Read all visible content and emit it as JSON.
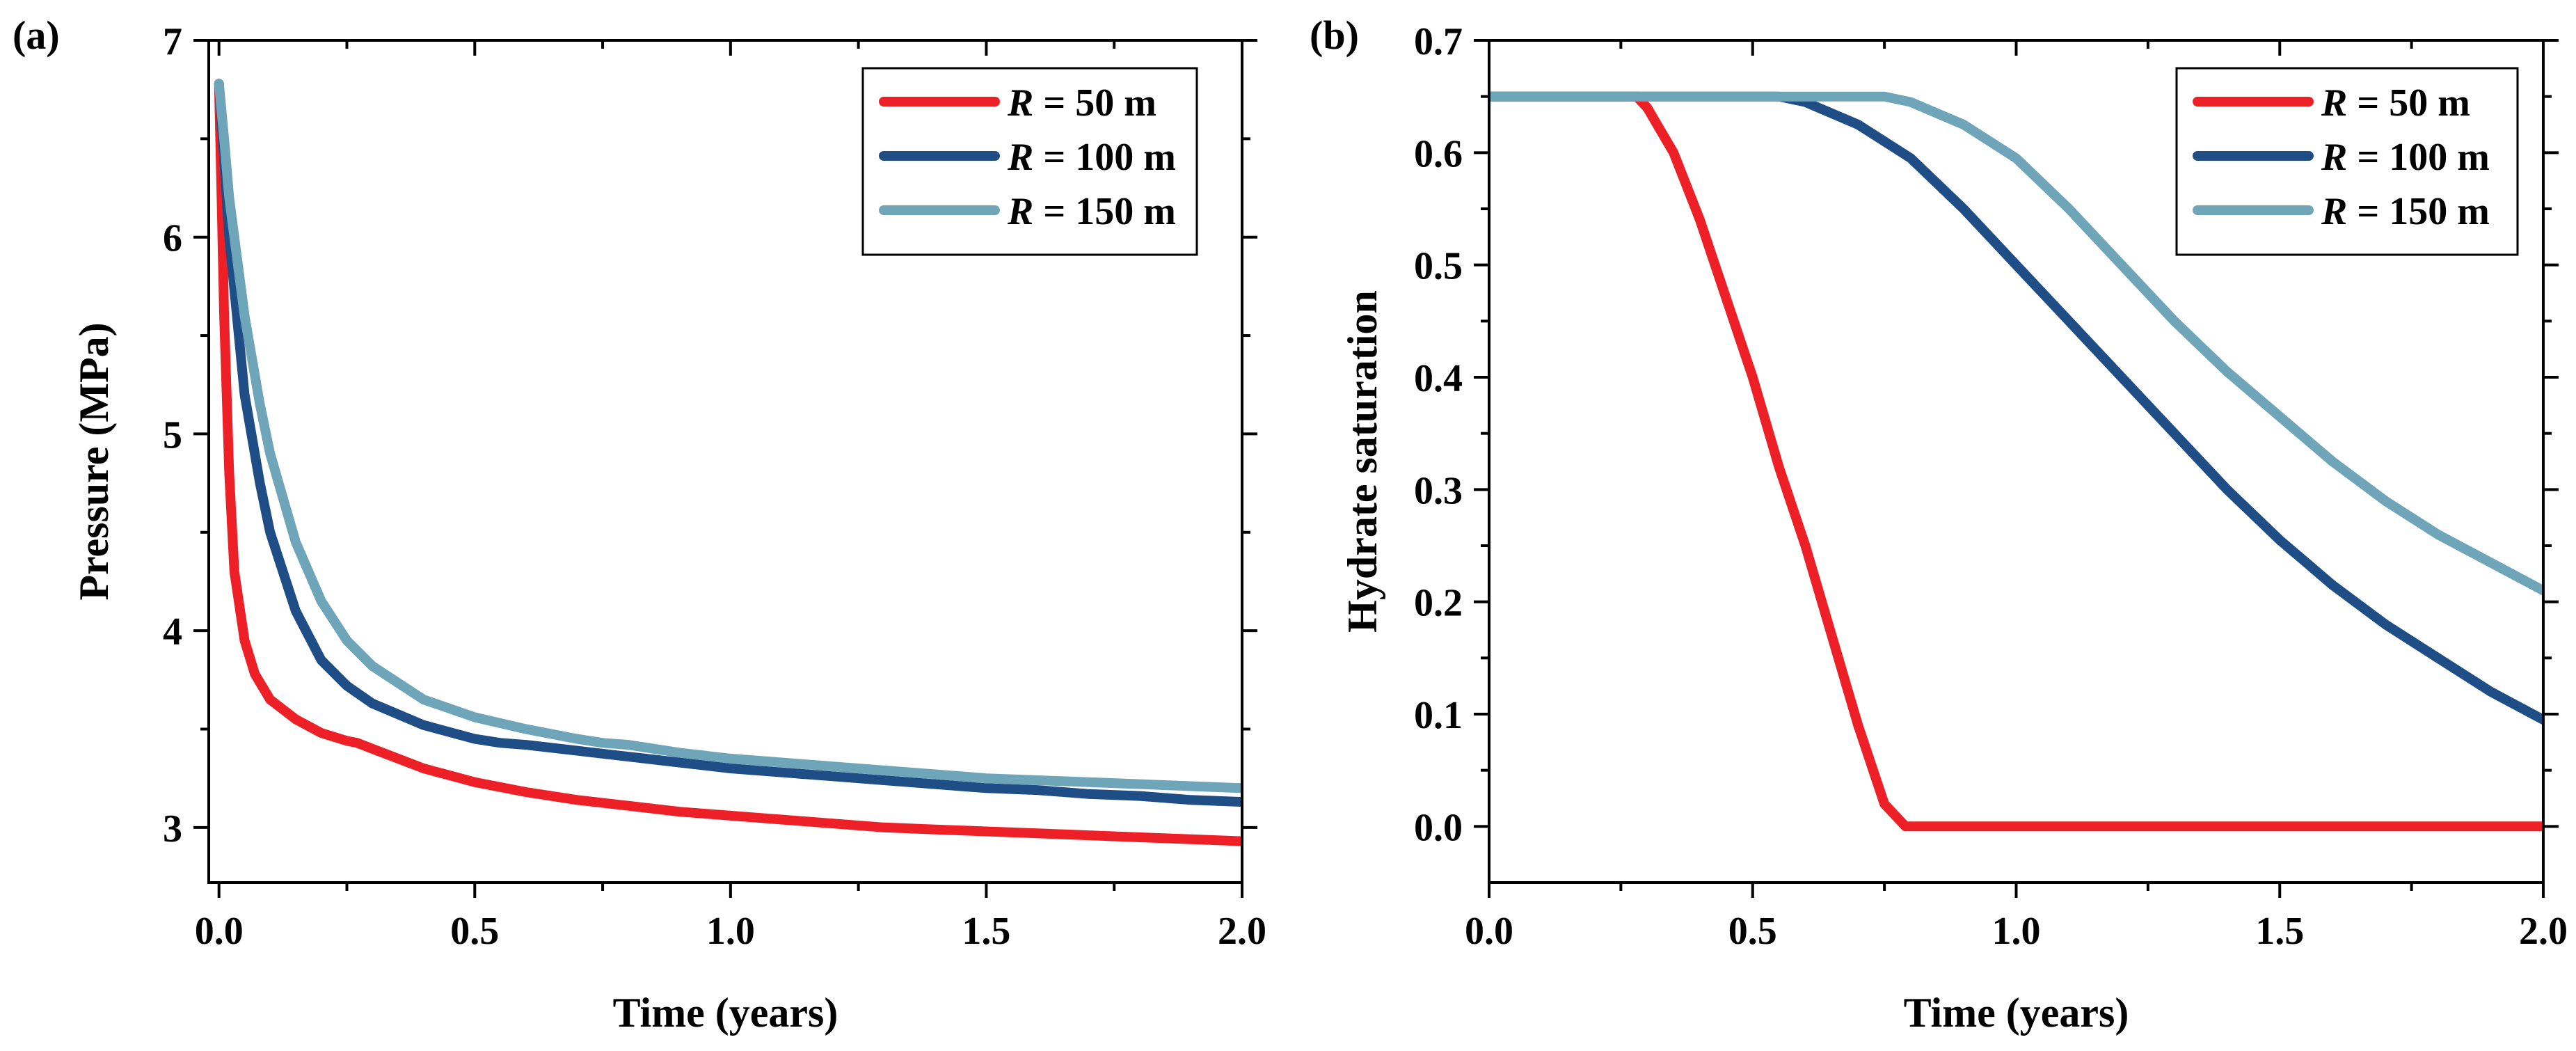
{
  "chart_data": [
    {
      "type": "line",
      "panel_label": "(a)",
      "xlabel": "Time (years)",
      "ylabel": "Pressure (MPa)",
      "xlim": [
        -0.02,
        2.0
      ],
      "ylim": [
        2.72,
        7.0
      ],
      "xticks": [
        0.0,
        0.5,
        1.0,
        1.5,
        2.0
      ],
      "xtick_labels": [
        "0.0",
        "0.5",
        "1.0",
        "1.5",
        "2.0"
      ],
      "yticks": [
        3,
        4,
        5,
        6,
        7
      ],
      "ytick_labels": [
        "3",
        "4",
        "5",
        "6",
        "7"
      ],
      "legend_position": "top-right",
      "series": [
        {
          "name_prefix": "R",
          "name_suffix": " = 50 m",
          "color": "#ee2027",
          "x": [
            0.0,
            0.005,
            0.01,
            0.02,
            0.03,
            0.05,
            0.07,
            0.1,
            0.15,
            0.2,
            0.25,
            0.27,
            0.3,
            0.4,
            0.5,
            0.6,
            0.7,
            0.8,
            0.9,
            1.0,
            1.05,
            1.1,
            1.2,
            1.3,
            1.4,
            1.5,
            1.6,
            1.7,
            1.8,
            1.9,
            2.0
          ],
          "y": [
            6.78,
            6.2,
            5.6,
            4.8,
            4.3,
            3.95,
            3.78,
            3.65,
            3.55,
            3.48,
            3.44,
            3.43,
            3.4,
            3.3,
            3.23,
            3.18,
            3.14,
            3.11,
            3.08,
            3.06,
            3.05,
            3.04,
            3.02,
            3.0,
            2.99,
            2.98,
            2.97,
            2.96,
            2.95,
            2.94,
            2.93
          ]
        },
        {
          "name_prefix": "R",
          "name_suffix": " = 100 m",
          "color": "#1f4e87",
          "x": [
            0.0,
            0.01,
            0.02,
            0.05,
            0.08,
            0.1,
            0.15,
            0.2,
            0.25,
            0.3,
            0.4,
            0.5,
            0.55,
            0.6,
            0.7,
            0.8,
            0.9,
            1.0,
            1.1,
            1.2,
            1.3,
            1.4,
            1.5,
            1.6,
            1.7,
            1.8,
            1.9,
            2.0
          ],
          "y": [
            6.78,
            6.4,
            6.0,
            5.2,
            4.75,
            4.5,
            4.1,
            3.85,
            3.72,
            3.63,
            3.52,
            3.45,
            3.43,
            3.42,
            3.39,
            3.36,
            3.33,
            3.3,
            3.28,
            3.26,
            3.24,
            3.22,
            3.2,
            3.19,
            3.17,
            3.16,
            3.14,
            3.13
          ]
        },
        {
          "name_prefix": "R",
          "name_suffix": " = 150 m",
          "color": "#6fa5b9",
          "x": [
            0.0,
            0.01,
            0.02,
            0.05,
            0.08,
            0.1,
            0.15,
            0.2,
            0.25,
            0.3,
            0.4,
            0.5,
            0.6,
            0.7,
            0.75,
            0.8,
            0.9,
            1.0,
            1.1,
            1.2,
            1.3,
            1.4,
            1.5,
            1.6,
            1.7,
            1.8,
            1.9,
            2.0
          ],
          "y": [
            6.78,
            6.5,
            6.2,
            5.6,
            5.15,
            4.9,
            4.45,
            4.15,
            3.95,
            3.82,
            3.65,
            3.56,
            3.5,
            3.45,
            3.43,
            3.42,
            3.38,
            3.35,
            3.33,
            3.31,
            3.29,
            3.27,
            3.25,
            3.24,
            3.23,
            3.22,
            3.21,
            3.2
          ]
        }
      ]
    },
    {
      "type": "line",
      "panel_label": "(b)",
      "xlabel": "Time (years)",
      "ylabel": "Hydrate saturation",
      "xlim": [
        0.0,
        2.0
      ],
      "ylim": [
        -0.05,
        0.7
      ],
      "xticks": [
        0.0,
        0.5,
        1.0,
        1.5,
        2.0
      ],
      "xtick_labels": [
        "0.0",
        "0.5",
        "1.0",
        "1.5",
        "2.0"
      ],
      "yticks": [
        0.0,
        0.1,
        0.2,
        0.3,
        0.4,
        0.5,
        0.6,
        0.7
      ],
      "ytick_labels": [
        "0.0",
        "0.1",
        "0.2",
        "0.3",
        "0.4",
        "0.5",
        "0.6",
        "0.7"
      ],
      "legend_position": "top-right",
      "series": [
        {
          "name_prefix": "R",
          "name_suffix": " = 50 m",
          "color": "#ee2027",
          "x": [
            0.0,
            0.28,
            0.3,
            0.35,
            0.4,
            0.45,
            0.5,
            0.55,
            0.6,
            0.65,
            0.7,
            0.75,
            0.79,
            0.8,
            1.0,
            1.5,
            2.0
          ],
          "y": [
            0.65,
            0.65,
            0.64,
            0.6,
            0.54,
            0.47,
            0.4,
            0.32,
            0.25,
            0.17,
            0.09,
            0.02,
            0.0,
            0.0,
            0.0,
            0.0,
            0.0
          ]
        },
        {
          "name_prefix": "R",
          "name_suffix": " = 100 m",
          "color": "#1f4e87",
          "x": [
            0.0,
            0.55,
            0.6,
            0.7,
            0.8,
            0.9,
            1.0,
            1.1,
            1.2,
            1.3,
            1.4,
            1.5,
            1.6,
            1.7,
            1.8,
            1.9,
            2.0
          ],
          "y": [
            0.65,
            0.65,
            0.645,
            0.625,
            0.595,
            0.55,
            0.5,
            0.45,
            0.4,
            0.35,
            0.3,
            0.255,
            0.215,
            0.18,
            0.15,
            0.12,
            0.095
          ]
        },
        {
          "name_prefix": "R",
          "name_suffix": " = 150 m",
          "color": "#6fa5b9",
          "x": [
            0.0,
            0.75,
            0.8,
            0.9,
            1.0,
            1.1,
            1.2,
            1.3,
            1.4,
            1.5,
            1.6,
            1.7,
            1.8,
            1.9,
            2.0
          ],
          "y": [
            0.65,
            0.65,
            0.645,
            0.625,
            0.595,
            0.55,
            0.5,
            0.45,
            0.405,
            0.365,
            0.325,
            0.29,
            0.26,
            0.235,
            0.21
          ]
        }
      ]
    }
  ]
}
